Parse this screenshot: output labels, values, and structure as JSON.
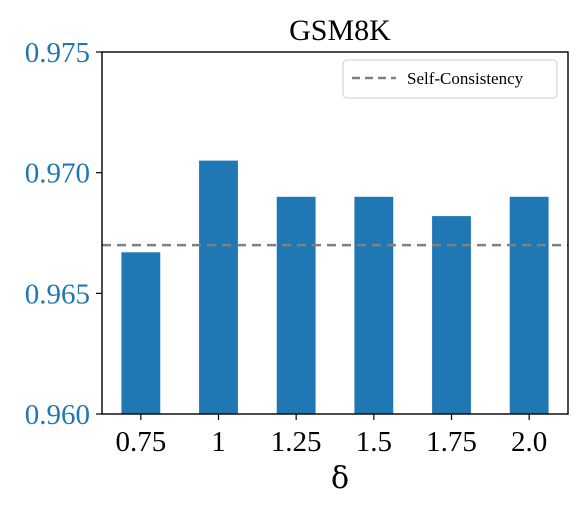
{
  "chart_data": {
    "type": "bar",
    "title": "GSM8K",
    "xlabel": "δ",
    "ylabel": "",
    "categories": [
      "0.75",
      "1",
      "1.25",
      "1.5",
      "1.75",
      "2.0"
    ],
    "values": [
      0.9667,
      0.9705,
      0.969,
      0.969,
      0.9682,
      0.969
    ],
    "ylim": [
      0.96,
      0.975
    ],
    "yticks": [
      "0.960",
      "0.965",
      "0.970",
      "0.975"
    ],
    "bar_color": "#1f77b4",
    "ytick_color": "#1f77b4",
    "reference_line": {
      "label": "Self-Consistency",
      "value": 0.967,
      "color": "#808080",
      "style": "dashed"
    },
    "legend": {
      "position": "top-right",
      "entries": [
        "Self-Consistency"
      ]
    },
    "grid": false
  }
}
